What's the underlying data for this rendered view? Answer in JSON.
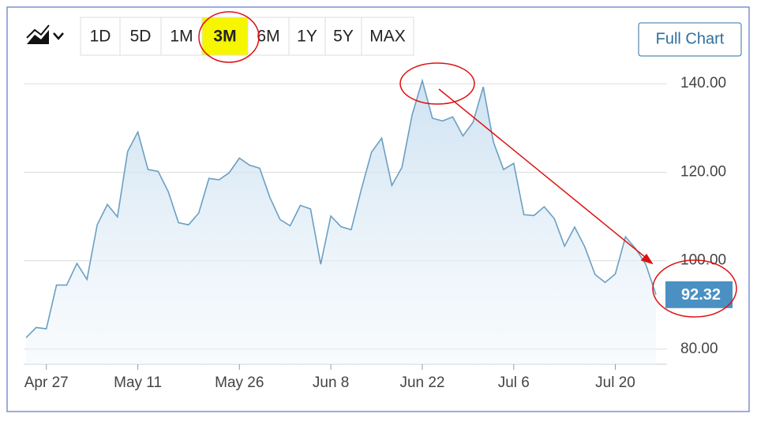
{
  "toolbar": {
    "ranges": [
      "1D",
      "5D",
      "1M",
      "3M",
      "6M",
      "1Y",
      "5Y",
      "MAX"
    ],
    "selected_index": 3,
    "full_chart": "Full Chart"
  },
  "chart_data": {
    "type": "line",
    "color": "#6b9fc2",
    "grid": true,
    "categories": [
      null,
      null,
      "Apr 27",
      null,
      null,
      null,
      null,
      null,
      null,
      null,
      null,
      "May 11",
      null,
      null,
      null,
      null,
      null,
      null,
      null,
      null,
      null,
      "May 26",
      null,
      null,
      null,
      null,
      null,
      null,
      null,
      null,
      "Jun 8",
      null,
      null,
      null,
      null,
      null,
      null,
      null,
      null,
      "Jun 22",
      null,
      null,
      null,
      null,
      null,
      null,
      null,
      null,
      "Jul 6",
      null,
      null,
      null,
      null,
      null,
      null,
      null,
      null,
      null,
      "Jul 20",
      null,
      null,
      null,
      null
    ],
    "values": [
      82.6,
      84.9,
      84.6,
      94.5,
      94.5,
      99.4,
      95.8,
      108.1,
      112.7,
      109.9,
      124.7,
      129.1,
      120.6,
      120.2,
      115.6,
      108.6,
      108.1,
      110.8,
      118.6,
      118.3,
      119.9,
      123.2,
      121.6,
      120.9,
      114.3,
      109.3,
      107.9,
      112.5,
      111.7,
      99.2,
      110.1,
      107.7,
      107.0,
      116.1,
      124.5,
      127.7,
      117.0,
      121.1,
      133.0,
      140.7,
      132.2,
      131.6,
      132.5,
      128.2,
      131.3,
      139.3,
      126.8,
      120.6,
      122.0,
      110.4,
      110.2,
      112.2,
      109.5,
      103.3,
      107.6,
      103.1,
      96.9,
      95.1,
      97.0,
      105.4,
      102.7,
      99.2,
      92.32
    ],
    "ylim": [
      76.6,
      142
    ],
    "yticks": [
      {
        "value": 80,
        "label": "80.00"
      },
      {
        "value": 100,
        "label": "100.00"
      },
      {
        "value": 120,
        "label": "120.00"
      },
      {
        "value": 140,
        "label": "140.00"
      }
    ]
  }
}
